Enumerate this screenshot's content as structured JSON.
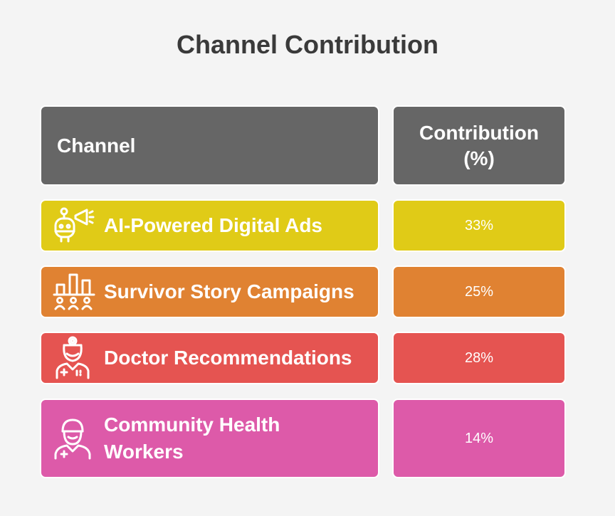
{
  "title": "Channel Contribution",
  "header": {
    "channel": "Channel",
    "contribution_line1": "Contribution",
    "contribution_line2": "(%)"
  },
  "chart_data": {
    "type": "table",
    "title": "Channel Contribution",
    "columns": [
      "Channel",
      "Contribution (%)"
    ],
    "rows": [
      {
        "channel": "AI-Powered Digital Ads",
        "contribution": "33%",
        "value": 33,
        "color": "#e0cb17",
        "icon": "robot-megaphone-icon"
      },
      {
        "channel": "Survivor Story Campaigns",
        "contribution": "25%",
        "value": 25,
        "color": "#e08232",
        "icon": "bar-chart-people-icon"
      },
      {
        "channel": "Doctor Recommendations",
        "contribution": "28%",
        "value": 28,
        "color": "#e55451",
        "icon": "doctor-icon"
      },
      {
        "channel": "Community Health Workers",
        "contribution": "14%",
        "value": 14,
        "color": "#dd5aa9",
        "icon": "health-worker-icon"
      }
    ]
  },
  "colors": {
    "background": "#f4f4f4",
    "header": "#666666",
    "title_text": "#3a3a3a"
  }
}
